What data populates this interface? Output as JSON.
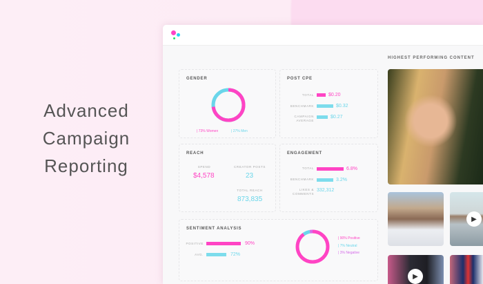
{
  "headline": [
    "Advanced",
    "Campaign",
    "Reporting"
  ],
  "colors": {
    "pink": "#ff44c4",
    "cyan": "#6ad6ea",
    "purple": "#d46be8",
    "green": "#22e06a"
  },
  "gender": {
    "title": "GENDER",
    "women": "73% Women",
    "men": "27% Men",
    "women_pct": 73,
    "men_pct": 27
  },
  "post_cpe": {
    "title": "POST CPE",
    "rows": [
      {
        "label": "TOTAL",
        "value": "$0.20"
      },
      {
        "label": "BENCHMARK",
        "value": "$0.32"
      },
      {
        "label": "CAMPAIGN AVERAGE",
        "value": "$0.27"
      }
    ]
  },
  "reach": {
    "title": "REACH",
    "spend_label": "SPEND",
    "spend": "$4,578",
    "posts_label": "CREATOR POSTS",
    "posts": "23",
    "reach_label": "TOTAL REACH",
    "total_reach": "873,835"
  },
  "engagement": {
    "title": "ENGAGEMENT",
    "rows": [
      {
        "label": "TOTAL",
        "value": "6.8%"
      },
      {
        "label": "BENCHMARK",
        "value": "3.2%"
      },
      {
        "label": "LIKES & COMMENTS",
        "value": "332,312"
      }
    ]
  },
  "sentiment": {
    "title": "SENTIMENT ANALYSIS",
    "positive_label": "POSITIVE",
    "positive": "90%",
    "avg_label": "AVG.",
    "avg": "72%",
    "legend": [
      "90% Positive",
      "7% Neutral",
      "3% Negative"
    ],
    "positive_pct": 90,
    "neutral_pct": 7,
    "negative_pct": 3
  },
  "content": {
    "title": "HIGHEST PERFORMING CONTENT"
  }
}
